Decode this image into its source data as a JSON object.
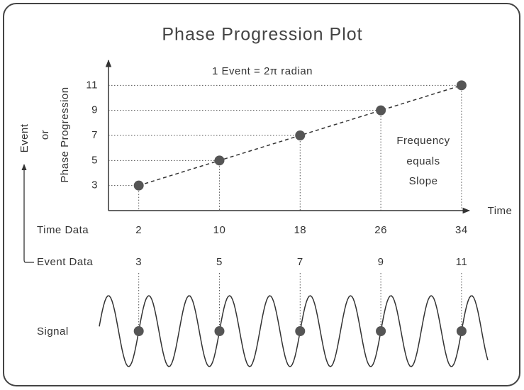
{
  "chart_data": {
    "type": "line",
    "title": "Phase Progression Plot",
    "annotation": "1 Event = 2π radian",
    "slope_note": [
      "Frequency",
      "equals",
      "Slope"
    ],
    "y_label": [
      "Event",
      "or",
      "Phase Progression"
    ],
    "x_label": "Time",
    "row_labels": {
      "time": "Time Data",
      "event": "Event Data",
      "signal": "Signal"
    },
    "x": [
      2,
      10,
      18,
      26,
      34
    ],
    "values": [
      3,
      5,
      7,
      9,
      11
    ],
    "color": "#555555",
    "xlim": [
      -1,
      34.5
    ],
    "ylim": [
      1,
      13
    ],
    "yticks": [
      3,
      5,
      7,
      9,
      11
    ]
  }
}
